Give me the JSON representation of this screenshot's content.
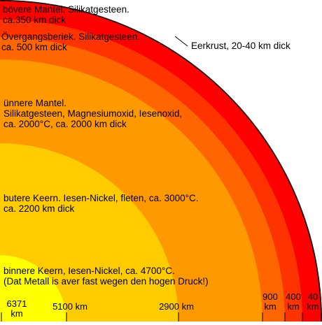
{
  "colors": {
    "crust": "#ff0000",
    "upper_mantle": "#ff3300",
    "transition_zone": "#ff6600",
    "lower_mantle": "#ff9900",
    "outer_core": "#ffcc00",
    "inner_core": "#ffff00",
    "outline": "#000000"
  },
  "layers": {
    "upper_mantle": {
      "line1": "bövere Mantel. Silikatgesteen.",
      "line2": "ca.350 km dick"
    },
    "transition_zone": {
      "line1": "Övergangsberiek. Silikatgesteen.",
      "line2": "ca. 500 km dick"
    },
    "crust": {
      "label": "Eerkrust, 20-40 km dick"
    },
    "lower_mantle": {
      "line1": "ünnere Mantel.",
      "line2": "Silikatgesteen, Magnesiumoxid, Iesenoxid,",
      "line3": "ca. 2000°C, ca. 2000 km dick"
    },
    "outer_core": {
      "line1": "butere Keern. Iesen-Nickel, fleten, ca. 3000°C.",
      "line2": "ca. 2200 km dick"
    },
    "inner_core": {
      "line1": "binnere Keern, Iesen-Nickel, ca. 4700°C.",
      "line2": "(Dat Metall is aver fast wegen den hogen Druck!)"
    }
  },
  "depth_ticks": [
    {
      "line1": "6371",
      "line2": "km"
    },
    {
      "line1": "5100 km",
      "line2": ""
    },
    {
      "line1": "2900 km",
      "line2": ""
    },
    {
      "line1": "900",
      "line2": "km"
    },
    {
      "line1": "400",
      "line2": "km"
    },
    {
      "line1": "40",
      "line2": "km"
    }
  ]
}
